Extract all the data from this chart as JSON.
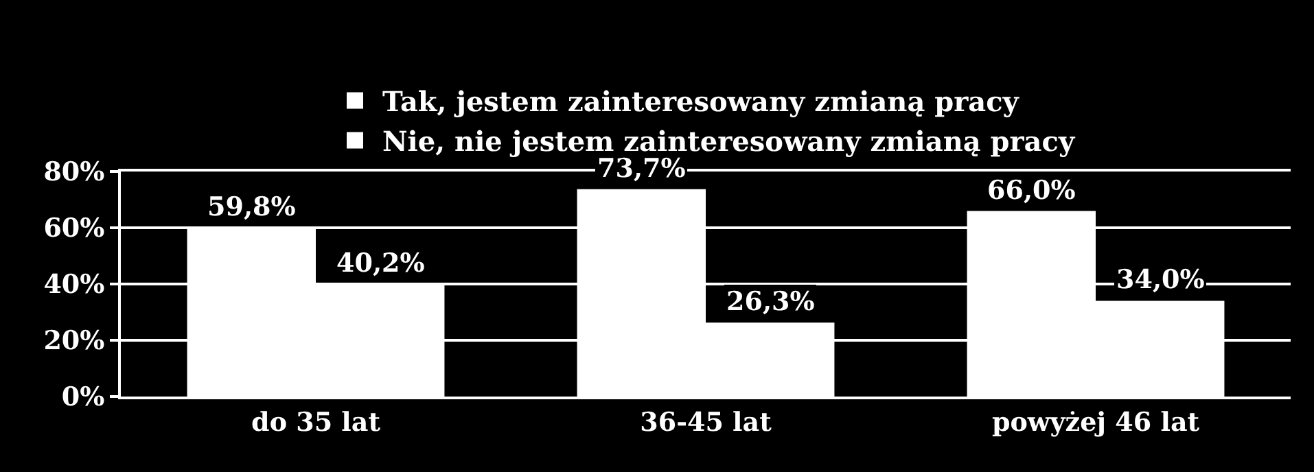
{
  "chart_data": {
    "type": "bar",
    "categories": [
      "do 35 lat",
      "36-45 lat",
      "powyżej 46 lat"
    ],
    "series": [
      {
        "name": "Tak, jestem zainteresowany zmianą pracy",
        "color": "#ffffff",
        "values": [
          59.8,
          73.7,
          66.0
        ],
        "value_labels": [
          "59,8%",
          "73,7%",
          "66,0%"
        ]
      },
      {
        "name": "Nie, nie jestem zainteresowany zmianą pracy",
        "color": "#ffffff",
        "values": [
          40.2,
          26.3,
          34.0
        ],
        "value_labels": [
          "40,2%",
          "26,3%",
          "34,0%"
        ]
      }
    ],
    "ylim": [
      0,
      80
    ],
    "yticks": [
      {
        "value": 0,
        "label": "0%"
      },
      {
        "value": 20,
        "label": "20%"
      },
      {
        "value": 40,
        "label": "40%"
      },
      {
        "value": 60,
        "label": "60%"
      },
      {
        "value": 80,
        "label": "80%"
      }
    ],
    "grid": "y",
    "legend": "top"
  }
}
